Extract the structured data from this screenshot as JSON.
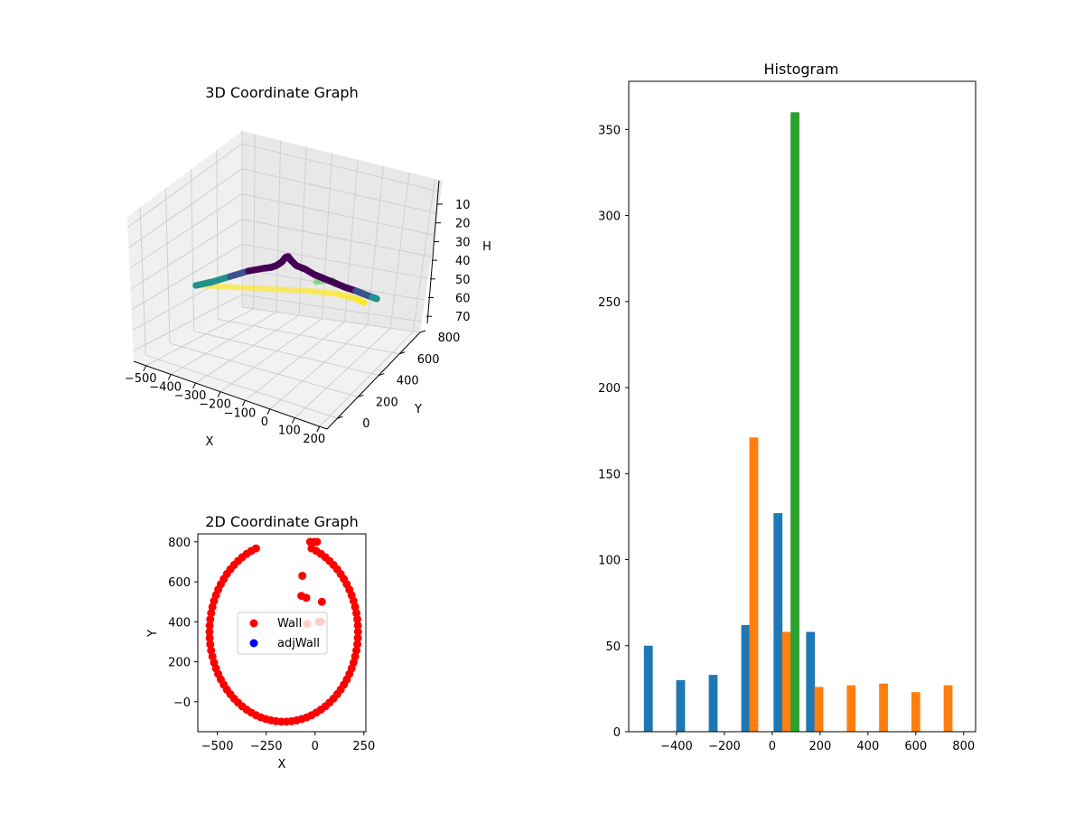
{
  "chart_data": [
    {
      "type": "scatter",
      "projection": "3d",
      "title": "3D Coordinate Graph",
      "xlabel": "X",
      "ylabel": "Y",
      "zlabel": "H",
      "x_ticks": [
        "−500",
        "−400",
        "−300",
        "−200",
        "−100",
        "0",
        "100",
        "200"
      ],
      "y_ticks": [
        "0",
        "200",
        "400",
        "600",
        "800"
      ],
      "z_ticks": [
        "10",
        "20",
        "30",
        "40",
        "50",
        "60",
        "70"
      ],
      "xlim": [
        -550,
        230
      ],
      "ylim": [
        -100,
        800
      ],
      "zlim": [
        5,
        75
      ],
      "z_inverted": true,
      "colormap": [
        "#440154",
        "#3b528b",
        "#21918c",
        "#5ec962",
        "#fde725"
      ],
      "grid": true
    },
    {
      "type": "scatter",
      "title": "2D Coordinate Graph",
      "xlabel": "X",
      "ylabel": "Y",
      "xlim": [
        -600,
        260
      ],
      "ylim": [
        -150,
        840
      ],
      "x_ticks": [
        "−500",
        "−250",
        "0",
        "250"
      ],
      "y_ticks": [
        "−0",
        "200",
        "400",
        "600",
        "800"
      ],
      "legend_position": "center-right",
      "series": [
        {
          "name": "Wall",
          "color": "#ff0000"
        },
        {
          "name": "adjWall",
          "color": "#0000ff"
        }
      ]
    },
    {
      "type": "bar",
      "title": "Histogram",
      "xlim": [
        -600,
        850
      ],
      "ylim": [
        0,
        378
      ],
      "x_ticks": [
        "−400",
        "−200",
        "0",
        "200",
        "400",
        "600",
        "800"
      ],
      "y_ticks": [
        "0",
        "50",
        "100",
        "150",
        "200",
        "250",
        "300",
        "350"
      ],
      "colors": [
        "#1f77b4",
        "#ff7f0e",
        "#2ca02c"
      ],
      "series": [
        {
          "bars": [
            [
              -518,
              50
            ],
            [
              -383,
              30
            ],
            [
              -247,
              33
            ],
            [
              -111,
              62
            ],
            [
              24,
              127
            ],
            [
              160,
              58
            ]
          ]
        },
        {
          "bars": [
            [
              -77,
              171
            ],
            [
              60,
              58
            ],
            [
              195,
              26
            ],
            [
              330,
              27
            ],
            [
              465,
              28
            ],
            [
              600,
              23
            ],
            [
              735,
              27
            ]
          ]
        },
        {
          "bars": [
            [
              95,
              360
            ]
          ]
        }
      ]
    }
  ]
}
